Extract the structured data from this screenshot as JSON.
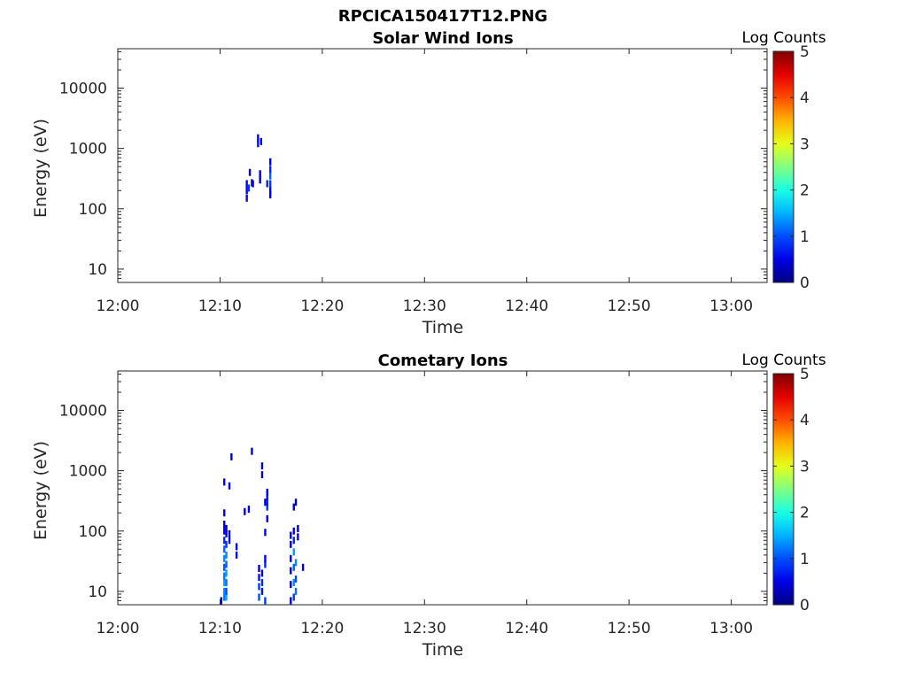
{
  "figure": {
    "title": "RPCICA150417T12.PNG"
  },
  "colorbar": {
    "label": "Log Counts",
    "range": [
      0,
      5
    ],
    "ticks": [
      "0",
      "1",
      "2",
      "3",
      "4",
      "5"
    ],
    "colormap": "jet"
  },
  "chart_data": [
    {
      "type": "heatmap",
      "title": "Solar Wind Ions",
      "xlabel": "Time",
      "ylabel": "Energy (eV)",
      "x_ticks": [
        "12:00",
        "12:10",
        "12:20",
        "12:30",
        "12:40",
        "12:50",
        "13:00"
      ],
      "y_ticks": [
        "10",
        "100",
        "1000",
        "10000"
      ],
      "y_scale": "log",
      "xlim_minutes_after_12": [
        0,
        63.5
      ],
      "ylim": [
        6,
        45000
      ],
      "cells": [
        {
          "t": 12.6,
          "e": 150,
          "c": 0.5
        },
        {
          "t": 12.6,
          "e": 200,
          "c": 0.6
        },
        {
          "t": 12.6,
          "e": 260,
          "c": 0.5
        },
        {
          "t": 12.8,
          "e": 220,
          "c": 0.9
        },
        {
          "t": 12.9,
          "e": 400,
          "c": 0.5
        },
        {
          "t": 13.1,
          "e": 270,
          "c": 0.5
        },
        {
          "t": 13.2,
          "e": 260,
          "c": 0.4
        },
        {
          "t": 13.7,
          "e": 1500,
          "c": 0.6
        },
        {
          "t": 13.7,
          "e": 1200,
          "c": 0.7
        },
        {
          "t": 13.9,
          "e": 300,
          "c": 0.6
        },
        {
          "t": 13.9,
          "e": 380,
          "c": 0.5
        },
        {
          "t": 14.0,
          "e": 1300,
          "c": 0.6
        },
        {
          "t": 14.6,
          "e": 260,
          "c": 0.8
        },
        {
          "t": 14.9,
          "e": 260,
          "c": 0.9
        },
        {
          "t": 14.9,
          "e": 350,
          "c": 1.1
        },
        {
          "t": 14.9,
          "e": 450,
          "c": 0.8
        },
        {
          "t": 14.9,
          "e": 600,
          "c": 0.6
        },
        {
          "t": 14.9,
          "e": 200,
          "c": 0.6
        },
        {
          "t": 14.9,
          "e": 170,
          "c": 0.5
        }
      ]
    },
    {
      "type": "heatmap",
      "title": "Cometary Ions",
      "xlabel": "Time",
      "ylabel": "Energy (eV)",
      "x_ticks": [
        "12:00",
        "12:10",
        "12:20",
        "12:30",
        "12:40",
        "12:50",
        "13:00"
      ],
      "y_ticks": [
        "10",
        "100",
        "1000",
        "10000"
      ],
      "y_scale": "log",
      "xlim_minutes_after_12": [
        0,
        63.5
      ],
      "ylim": [
        6,
        45000
      ],
      "cells": [
        {
          "t": 10.1,
          "e": 7,
          "c": 0.5
        },
        {
          "t": 10.4,
          "e": 8,
          "c": 1.2
        },
        {
          "t": 10.4,
          "e": 10,
          "c": 1.3
        },
        {
          "t": 10.4,
          "e": 14,
          "c": 1.4
        },
        {
          "t": 10.4,
          "e": 18,
          "c": 1.2
        },
        {
          "t": 10.4,
          "e": 25,
          "c": 1.0
        },
        {
          "t": 10.4,
          "e": 35,
          "c": 1.3
        },
        {
          "t": 10.4,
          "e": 50,
          "c": 1.1
        },
        {
          "t": 10.4,
          "e": 70,
          "c": 0.8
        },
        {
          "t": 10.4,
          "e": 100,
          "c": 0.5
        },
        {
          "t": 10.4,
          "e": 130,
          "c": 0.4
        },
        {
          "t": 10.4,
          "e": 200,
          "c": 0.4
        },
        {
          "t": 10.4,
          "e": 650,
          "c": 0.5
        },
        {
          "t": 10.6,
          "e": 8,
          "c": 1.5
        },
        {
          "t": 10.6,
          "e": 10,
          "c": 1.0
        },
        {
          "t": 10.6,
          "e": 14,
          "c": 1.2
        },
        {
          "t": 10.6,
          "e": 20,
          "c": 1.4
        },
        {
          "t": 10.6,
          "e": 28,
          "c": 1.1
        },
        {
          "t": 10.6,
          "e": 40,
          "c": 1.3
        },
        {
          "t": 10.6,
          "e": 60,
          "c": 0.9
        },
        {
          "t": 10.6,
          "e": 90,
          "c": 0.6
        },
        {
          "t": 10.6,
          "e": 110,
          "c": 0.4
        },
        {
          "t": 10.9,
          "e": 70,
          "c": 0.5
        },
        {
          "t": 10.9,
          "e": 90,
          "c": 0.4
        },
        {
          "t": 10.9,
          "e": 560,
          "c": 0.5
        },
        {
          "t": 11.1,
          "e": 1700,
          "c": 0.4
        },
        {
          "t": 11.6,
          "e": 40,
          "c": 0.5
        },
        {
          "t": 11.6,
          "e": 55,
          "c": 0.5
        },
        {
          "t": 12.4,
          "e": 210,
          "c": 0.5
        },
        {
          "t": 12.8,
          "e": 230,
          "c": 0.5
        },
        {
          "t": 13.1,
          "e": 2100,
          "c": 0.4
        },
        {
          "t": 13.8,
          "e": 8,
          "c": 1.0
        },
        {
          "t": 13.8,
          "e": 12,
          "c": 0.9
        },
        {
          "t": 13.8,
          "e": 17,
          "c": 0.7
        },
        {
          "t": 13.8,
          "e": 24,
          "c": 0.5
        },
        {
          "t": 14.1,
          "e": 10,
          "c": 0.7
        },
        {
          "t": 14.1,
          "e": 14,
          "c": 0.8
        },
        {
          "t": 14.1,
          "e": 20,
          "c": 0.6
        },
        {
          "t": 14.1,
          "e": 1200,
          "c": 0.4
        },
        {
          "t": 14.1,
          "e": 860,
          "c": 0.4
        },
        {
          "t": 14.4,
          "e": 7,
          "c": 0.9
        },
        {
          "t": 14.4,
          "e": 28,
          "c": 0.8
        },
        {
          "t": 14.4,
          "e": 35,
          "c": 0.6
        },
        {
          "t": 14.4,
          "e": 95,
          "c": 0.4
        },
        {
          "t": 14.4,
          "e": 300,
          "c": 0.4
        },
        {
          "t": 14.6,
          "e": 250,
          "c": 0.9
        },
        {
          "t": 14.6,
          "e": 300,
          "c": 0.8
        },
        {
          "t": 14.6,
          "e": 380,
          "c": 0.7
        },
        {
          "t": 14.6,
          "e": 440,
          "c": 0.6
        },
        {
          "t": 14.6,
          "e": 160,
          "c": 0.5
        },
        {
          "t": 16.9,
          "e": 7,
          "c": 0.6
        },
        {
          "t": 16.9,
          "e": 13,
          "c": 0.5
        },
        {
          "t": 16.9,
          "e": 22,
          "c": 0.4
        },
        {
          "t": 16.9,
          "e": 35,
          "c": 0.5
        },
        {
          "t": 16.9,
          "e": 60,
          "c": 0.4
        },
        {
          "t": 16.9,
          "e": 85,
          "c": 0.5
        },
        {
          "t": 17.2,
          "e": 8,
          "c": 0.9
        },
        {
          "t": 17.2,
          "e": 14,
          "c": 1.3
        },
        {
          "t": 17.2,
          "e": 25,
          "c": 1.1
        },
        {
          "t": 17.2,
          "e": 45,
          "c": 1.4
        },
        {
          "t": 17.2,
          "e": 70,
          "c": 0.8
        },
        {
          "t": 17.2,
          "e": 100,
          "c": 0.6
        },
        {
          "t": 17.2,
          "e": 250,
          "c": 0.4
        },
        {
          "t": 17.4,
          "e": 10,
          "c": 1.2
        },
        {
          "t": 17.4,
          "e": 16,
          "c": 1.0
        },
        {
          "t": 17.4,
          "e": 30,
          "c": 1.3
        },
        {
          "t": 17.4,
          "e": 300,
          "c": 0.4
        },
        {
          "t": 17.6,
          "e": 80,
          "c": 0.5
        },
        {
          "t": 17.6,
          "e": 110,
          "c": 0.4
        },
        {
          "t": 18.1,
          "e": 25,
          "c": 0.5
        }
      ]
    }
  ]
}
